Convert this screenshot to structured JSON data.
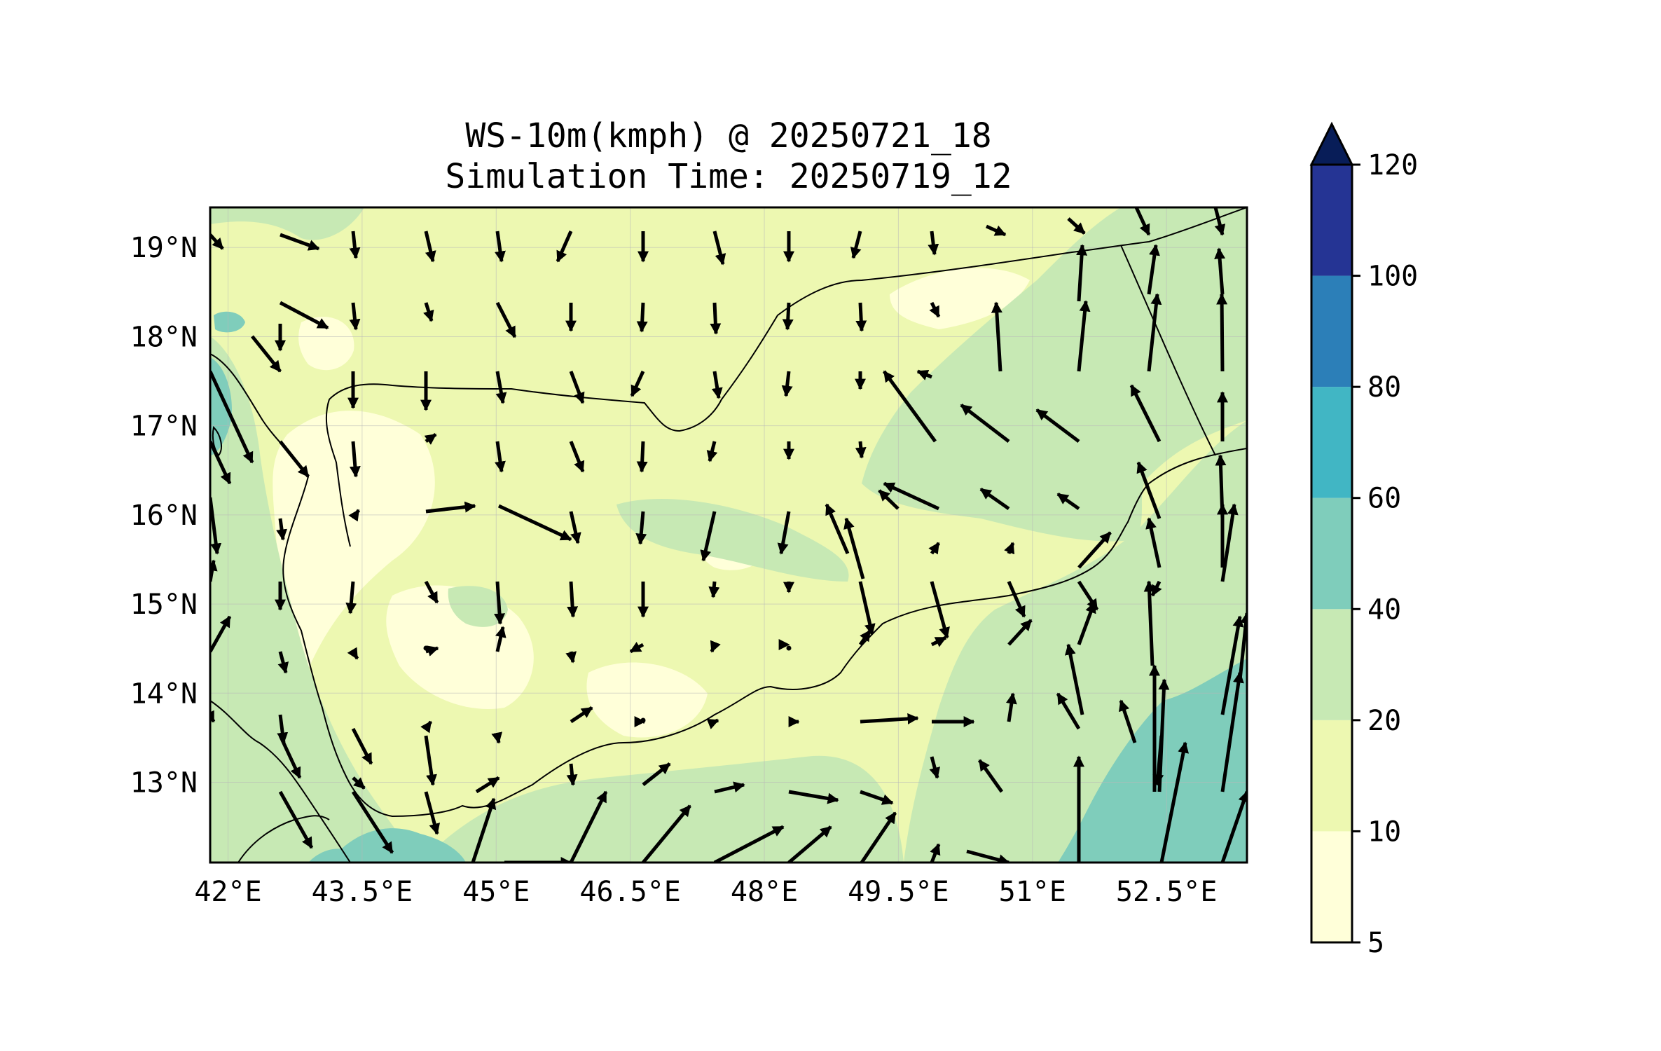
{
  "title": {
    "line1": "WS-10m(kmph) @ 20250721_18",
    "line2": "Simulation Time: 20250719_12"
  },
  "map": {
    "lon_range": [
      41.8,
      53.4
    ],
    "lat_range": [
      12.1,
      19.45
    ],
    "lon_ticks": [
      {
        "value": 42.0,
        "label": "42°E"
      },
      {
        "value": 43.5,
        "label": "43.5°E"
      },
      {
        "value": 45.0,
        "label": "45°E"
      },
      {
        "value": 46.5,
        "label": "46.5°E"
      },
      {
        "value": 48.0,
        "label": "48°E"
      },
      {
        "value": 49.5,
        "label": "49.5°E"
      },
      {
        "value": 51.0,
        "label": "51°E"
      },
      {
        "value": 52.5,
        "label": "52.5°E"
      }
    ],
    "lat_ticks": [
      {
        "value": 19,
        "label": "19°N"
      },
      {
        "value": 18,
        "label": "18°N"
      },
      {
        "value": 17,
        "label": "17°N"
      },
      {
        "value": 16,
        "label": "16°N"
      },
      {
        "value": 15,
        "label": "15°N"
      },
      {
        "value": 14,
        "label": "14°N"
      },
      {
        "value": 13,
        "label": "13°N"
      }
    ],
    "gridlines": true,
    "colors": {
      "bin_5_10": "#ffffd9",
      "bin_10_20": "#edf8b1",
      "bin_20_40": "#c7e9b4",
      "bin_40_60": "#7fcdbb",
      "coast": "#000000",
      "vector": "#000000"
    }
  },
  "colorbar": {
    "levels": [
      {
        "value": 5,
        "label": "5"
      },
      {
        "value": 10,
        "label": "10"
      },
      {
        "value": 20,
        "label": "20"
      },
      {
        "value": 40,
        "label": "40"
      },
      {
        "value": 60,
        "label": "60"
      },
      {
        "value": 80,
        "label": "80"
      },
      {
        "value": 100,
        "label": "100"
      },
      {
        "value": 120,
        "label": "120"
      }
    ],
    "colors": [
      "#ffffd9",
      "#edf8b1",
      "#c7e9b4",
      "#7fcdbb",
      "#41b6c4",
      "#2c7fb8",
      "#253494",
      "#081d58"
    ],
    "extend": "max"
  }
}
